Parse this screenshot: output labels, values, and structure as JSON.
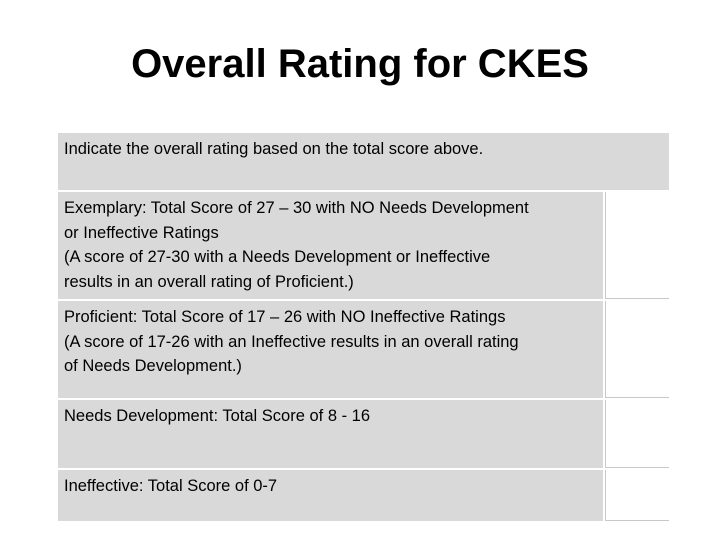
{
  "title": "Overall Rating for CKES",
  "table": {
    "header": "Indicate the overall rating based on the total score above.",
    "rows": [
      {
        "lines": [
          "Exemplary:  Total Score of 27 – 30 with NO Needs Development",
          "or Ineffective Ratings",
          "(A score of 27-30 with a Needs Development or Ineffective",
          "results in an overall rating of Proficient.)"
        ]
      },
      {
        "lines": [
          "Proficient:  Total Score of 17 – 26 with NO Ineffective Ratings",
          "(A score of 17-26 with an Ineffective results in an overall rating",
          "of Needs Development.)"
        ]
      },
      {
        "lines": [
          "Needs Development:  Total Score of 8 - 16"
        ]
      },
      {
        "lines": [
          "Ineffective:  Total Score of 0-7"
        ]
      }
    ]
  }
}
